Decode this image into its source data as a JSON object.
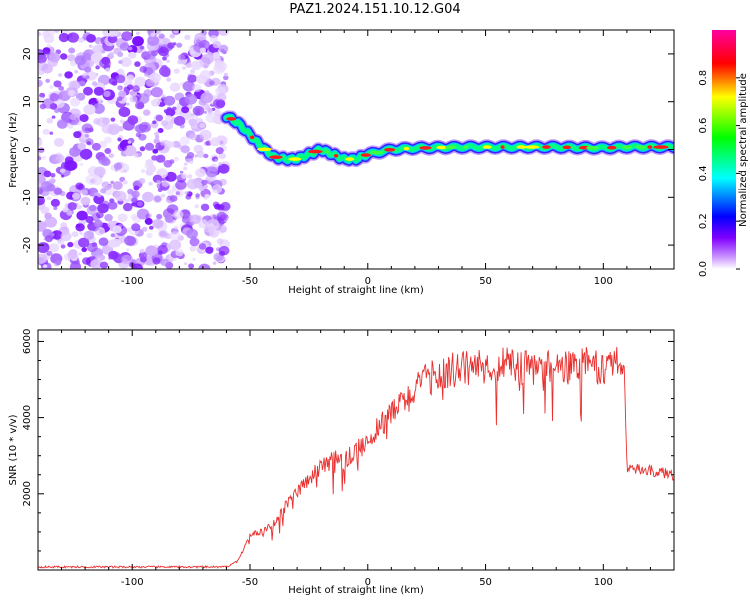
{
  "title": "PAZ1.2024.151.10.12.G04",
  "chart_data": [
    {
      "type": "heatmap",
      "xlabel": "Height of straight line (km)",
      "ylabel": "Frequency (Hz)",
      "xlim": [
        -140,
        130
      ],
      "ylim": [
        -25,
        25
      ],
      "xticks": [
        -100,
        -50,
        0,
        50,
        100
      ],
      "yticks": [
        -20,
        -10,
        0,
        10,
        20
      ],
      "noise_region_x": [
        -140,
        -60
      ],
      "ridge_x": [
        -60,
        -55,
        -50,
        -45,
        -40,
        -35,
        -30,
        -25,
        -20,
        -15,
        -10,
        -5,
        0,
        10,
        20,
        40,
        60,
        80,
        100,
        110,
        120,
        130
      ],
      "ridge_freq": [
        7,
        5.5,
        3,
        0.5,
        -1.5,
        -2,
        -2,
        -1,
        0,
        -1,
        -2,
        -2,
        -1,
        0,
        0.3,
        0.5,
        0.5,
        0.5,
        0.3,
        0.5,
        0.5,
        0.5
      ],
      "colorbar": {
        "label": "Normalized spectral amplitude",
        "range": [
          0,
          1
        ],
        "ticks": [
          "0.0",
          "0.2",
          "0.4",
          "0.6",
          "0.8"
        ],
        "colors": [
          "#ffffff",
          "#c080ff",
          "#8000ff",
          "#0000ff",
          "#00ffff",
          "#00ff00",
          "#ffff00",
          "#ff0000",
          "#ff00a0"
        ]
      }
    },
    {
      "type": "line",
      "xlabel": "Height of straight line (km)",
      "ylabel": "SNR (10 * v/v)",
      "xlim": [
        -140,
        130
      ],
      "ylim": [
        0,
        6300
      ],
      "xticks": [
        -100,
        -50,
        0,
        50,
        100
      ],
      "yticks": [
        2000,
        4000,
        6000
      ],
      "line_color": "#e8302e",
      "x": [
        -140,
        -100,
        -60,
        -55,
        -50,
        -45,
        -40,
        -35,
        -30,
        -25,
        -20,
        -15,
        -10,
        -5,
        0,
        5,
        10,
        15,
        20,
        25,
        30,
        40,
        50,
        60,
        70,
        80,
        90,
        95,
        100,
        105,
        109,
        110,
        112,
        120,
        130
      ],
      "values": [
        80,
        80,
        80,
        250,
        900,
        1000,
        1200,
        1700,
        2000,
        2400,
        2700,
        2900,
        2850,
        3100,
        3400,
        3800,
        4100,
        4400,
        4700,
        5000,
        5150,
        5300,
        5350,
        5400,
        5300,
        5350,
        5400,
        5450,
        5250,
        5300,
        5250,
        2700,
        2650,
        2600,
        2500
      ]
    }
  ]
}
